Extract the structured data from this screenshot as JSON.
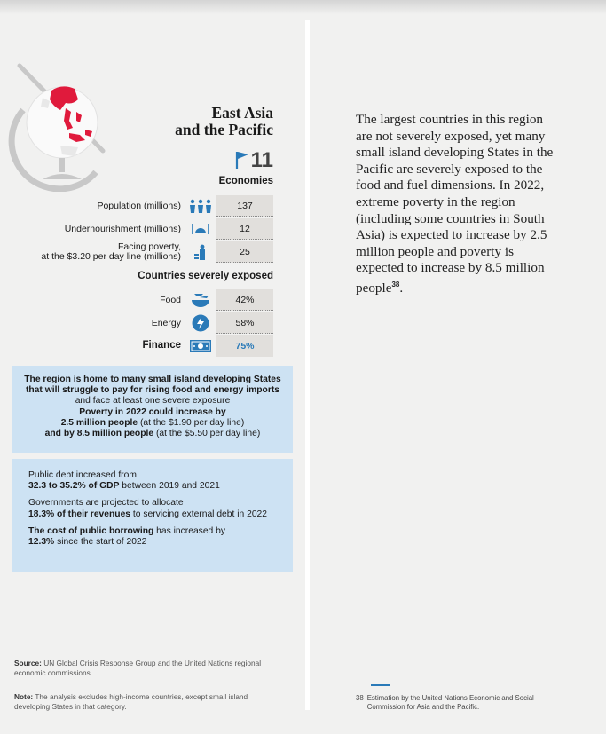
{
  "region": {
    "title_line1": "East Asia",
    "title_line2": "and the Pacific"
  },
  "economies": {
    "count": "11",
    "label": "Economies"
  },
  "stats": [
    {
      "label": "Population (millions)",
      "value": "137",
      "icon": "people-icon"
    },
    {
      "label": "Undernourishment (millions)",
      "value": "12",
      "icon": "plate-icon"
    },
    {
      "label_line1": "Facing poverty,",
      "label_line2": "at the $3.20 per day line (millions)",
      "value": "25",
      "icon": "poverty-icon"
    }
  ],
  "exposed": {
    "title": "Countries severely exposed",
    "rows": [
      {
        "label": "Food",
        "value": "42%",
        "icon": "food-bowl-icon"
      },
      {
        "label": "Energy",
        "value": "58%",
        "icon": "energy-bolt-icon"
      },
      {
        "label": "Finance",
        "value": "75%",
        "icon": "money-icon",
        "highlight": true
      }
    ]
  },
  "box1": {
    "line1": "The region is home to many small island developing States",
    "line2": "that will struggle to pay for rising food and energy imports",
    "line3": "and face at least one severe exposure",
    "line4": "Poverty in 2022 could increase by",
    "line5_bold": "2.5 million people",
    "line5_rest": " (at the $1.90 per day line)",
    "line6_bold": "and by 8.5 million people",
    "line6_rest": " (at the $5.50 per day line)"
  },
  "box2": {
    "p1_line1": "Public debt increased from",
    "p1_bold": "32.3 to 35.2% of GDP",
    "p1_rest": " between 2019 and 2021",
    "p2_line1": "Governments are projected to allocate",
    "p2_bold": "18.3% of their revenues",
    "p2_rest": " to servicing external debt in 2022",
    "p3_bold": "The cost of public borrowing",
    "p3_rest": " has increased by",
    "p3_bold2": "12.3%",
    "p3_rest2": " since the start of 2022"
  },
  "source": {
    "label": "Source:",
    "text": " UN Global Crisis Response Group and the United Nations regional economic commissions."
  },
  "note": {
    "label": "Note:",
    "text": " The analysis excludes high-income countries, except small island developing States in that category."
  },
  "body": {
    "text": "The largest countries in this region are not severely exposed, yet many small island  developing States in the Pacific are severely exposed to the food and fuel dimensions. In 2022, extreme poverty in the region (including some countries in South Asia) is expected to increase by 2.5 million people and poverty is expected to increase by 8.5 million people",
    "footnote_ref": "38",
    "period": "."
  },
  "footnote": {
    "number": "38",
    "text": "Estimation by the United Nations Economic and Social Commission for Asia and the Pacific."
  },
  "colors": {
    "icon_blue": "#2a7ab8",
    "box_blue": "#cde2f3",
    "value_bg": "#e1dfdc",
    "map_red": "#e01a3c"
  }
}
